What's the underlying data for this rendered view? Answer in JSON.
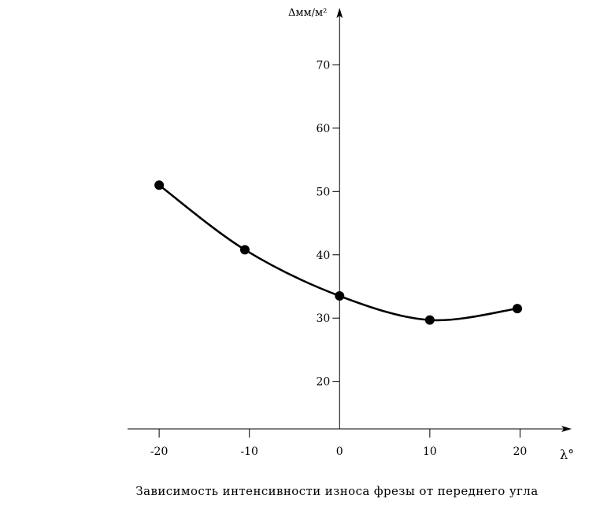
{
  "chart_data": {
    "type": "line",
    "caption": "Зависимость интенсивности износа фрезы от переднего угла",
    "xlabel": "λ°",
    "ylabel": "Δмм/м²",
    "x_ticks": [
      -20,
      -10,
      0,
      10,
      20
    ],
    "y_ticks": [
      20,
      30,
      40,
      50,
      60,
      70
    ],
    "xlim": [
      -23.5,
      24.5
    ],
    "ylim": [
      12.5,
      79
    ],
    "grid": false,
    "series": [
      {
        "x": [
          -20,
          -10.5,
          0,
          10,
          19.7
        ],
        "y": [
          51,
          40.8,
          33.5,
          29.7,
          31.5
        ]
      }
    ]
  }
}
